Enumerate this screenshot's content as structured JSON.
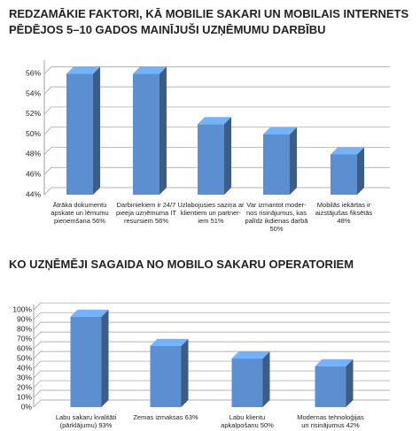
{
  "chart_data": [
    {
      "type": "bar3d",
      "title": "REDZAMĀKIE FAKTORI, KĀ MOBILIE SAKARI UN MOBILAIS INTERNETS PĒDĒJOS 5–10 GADOS MAINĪJUŠI UZŅĒMUMU DARBĪBU",
      "categories": [
        "Ātrāka dokumentu\napskate un lēmumu\npieņemšana 56%",
        "Darbiniekiem ir 24/7\npieeja uzņēmuma IT\nresursiem 56%",
        "Uzlabojusies saziņa ar\nklientiem un partner-\niem 51%",
        "Var izmantot moder-\nnos risinājumus, kas\npalīdz ikdienas darbā\n50%",
        "Mobilās iekārtas ir\naizstājušas fiksētās\n48%"
      ],
      "values": [
        56,
        56,
        51,
        50,
        48
      ],
      "color": "#5b8fd0",
      "ylim": [
        44,
        57
      ],
      "yticks": [
        {
          "value": 44,
          "label": "44%"
        },
        {
          "value": 46,
          "label": "46%"
        },
        {
          "value": 48,
          "label": "48%"
        },
        {
          "value": 50,
          "label": "50%"
        },
        {
          "value": 52,
          "label": "52%"
        },
        {
          "value": 54,
          "label": "54%"
        },
        {
          "value": 56,
          "label": "56%"
        }
      ],
      "grid": true
    },
    {
      "type": "bar3d",
      "title": "KO UZŅĒMĒJI SAGAIDA NO MOBILO SAKARU OPERATORIEM",
      "categories": [
        "Labu sakaru kvalitāti\n(pārklājumu) 93%",
        "Zemas izmaksas 63%",
        "Labu klientu\napkalpošanu 50%",
        "Modernas tehnoloģijas\nun risinājumus 42%"
      ],
      "values": [
        93,
        63,
        50,
        42
      ],
      "color": "#5b8fd0",
      "ylim": [
        0,
        102
      ],
      "yticks": [
        {
          "value": 0,
          "label": "0%"
        },
        {
          "value": 10,
          "label": "10%"
        },
        {
          "value": 20,
          "label": "20%"
        },
        {
          "value": 30,
          "label": "30%"
        },
        {
          "value": 40,
          "label": "40%"
        },
        {
          "value": 50,
          "label": "50%"
        },
        {
          "value": 60,
          "label": "60%"
        },
        {
          "value": 70,
          "label": "70%"
        },
        {
          "value": 80,
          "label": "80%"
        },
        {
          "value": 90,
          "label": "90%"
        },
        {
          "value": 100,
          "label": "100%"
        }
      ],
      "grid": true
    }
  ]
}
